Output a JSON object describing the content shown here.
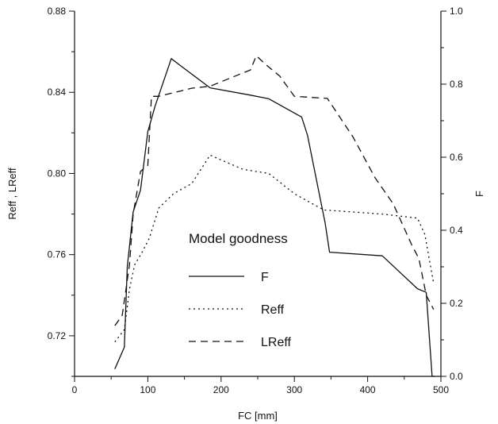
{
  "chart_data": {
    "type": "line",
    "xlabel": "FC [mm]",
    "ylabel_left": "Reff , LReff",
    "ylabel_right": "F",
    "xlim": [
      0,
      500
    ],
    "ylim_left": [
      0.7,
      0.88
    ],
    "ylim_right": [
      0.0,
      1.0
    ],
    "x_ticks": [
      "0",
      "100",
      "200",
      "300",
      "400",
      "500"
    ],
    "y_left_ticks": [
      "0.72",
      "0.76",
      "0.80",
      "0.84",
      "0.88"
    ],
    "y_right_ticks": [
      "0.0",
      "0.2",
      "0.4",
      "0.6",
      "0.8",
      "1.0"
    ],
    "grid": false,
    "legend": {
      "title": "Model goodness",
      "position": "center"
    },
    "series": [
      {
        "name": "F",
        "axis": "right",
        "style": "solid",
        "x": [
          55,
          68,
          72,
          80,
          90,
          100,
          110,
          132,
          145,
          185,
          240,
          265,
          310,
          318,
          335,
          342,
          348,
          420,
          468,
          480,
          488,
          492
        ],
        "y": [
          0.02,
          0.08,
          0.3,
          0.45,
          0.51,
          0.67,
          0.74,
          0.87,
          0.85,
          0.79,
          0.77,
          0.76,
          0.71,
          0.66,
          0.49,
          0.42,
          0.34,
          0.33,
          0.24,
          0.23,
          0.0,
          0.0
        ]
      },
      {
        "name": "Reff",
        "axis": "left",
        "style": "dotted",
        "x": [
          55,
          68,
          75,
          82,
          92,
          102,
          115,
          135,
          160,
          185,
          230,
          265,
          300,
          340,
          420,
          468,
          478,
          490
        ],
        "y": [
          0.717,
          0.723,
          0.743,
          0.755,
          0.761,
          0.768,
          0.783,
          0.79,
          0.795,
          0.809,
          0.802,
          0.8,
          0.79,
          0.782,
          0.78,
          0.778,
          0.77,
          0.746
        ]
      },
      {
        "name": "LReff",
        "axis": "left",
        "style": "dashed",
        "x": [
          55,
          65,
          75,
          80,
          90,
          100,
          105,
          115,
          160,
          185,
          240,
          248,
          260,
          280,
          300,
          345,
          380,
          410,
          435,
          460,
          470,
          480,
          490
        ],
        "y": [
          0.725,
          0.73,
          0.755,
          0.78,
          0.801,
          0.804,
          0.838,
          0.838,
          0.842,
          0.843,
          0.851,
          0.858,
          0.854,
          0.848,
          0.838,
          0.837,
          0.818,
          0.798,
          0.785,
          0.765,
          0.758,
          0.74,
          0.733
        ]
      }
    ]
  }
}
